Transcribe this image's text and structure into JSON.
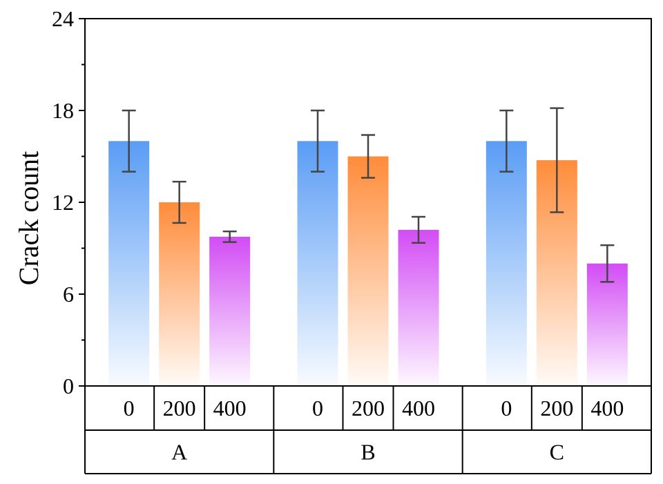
{
  "chart_data": {
    "type": "bar",
    "ylabel": "Crack count",
    "ylim": [
      0,
      24
    ],
    "yticks": [
      0,
      6,
      12,
      18,
      24
    ],
    "y_minor_step": 3,
    "groups": [
      {
        "name": "A",
        "bars": [
          {
            "label": "0",
            "value": 16.0,
            "error": 2.0
          },
          {
            "label": "200",
            "value": 12.0,
            "error": 1.35
          },
          {
            "label": "400",
            "value": 9.75,
            "error": 0.35
          }
        ]
      },
      {
        "name": "B",
        "bars": [
          {
            "label": "0",
            "value": 16.0,
            "error": 2.0
          },
          {
            "label": "200",
            "value": 15.0,
            "error": 1.4
          },
          {
            "label": "400",
            "value": 10.2,
            "error": 0.85
          }
        ]
      },
      {
        "name": "C",
        "bars": [
          {
            "label": "0",
            "value": 16.0,
            "error": 2.0
          },
          {
            "label": "200",
            "value": 14.75,
            "error": 3.4
          },
          {
            "label": "400",
            "value": 8.0,
            "error": 1.2
          }
        ]
      }
    ],
    "colors": {
      "0": "#5a9cf5",
      "200": "#ff8c3a",
      "400": "#d24cf5"
    },
    "error_bar_color": "#444444"
  }
}
